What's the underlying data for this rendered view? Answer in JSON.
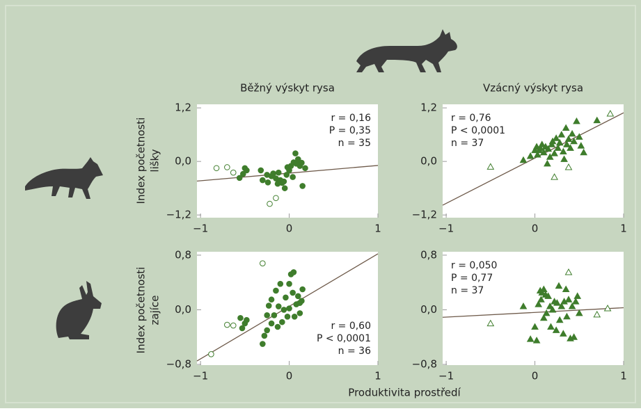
{
  "column_titles": [
    "Běžný výskyt rysa",
    "Vzácný výskyt rysa"
  ],
  "row_labels": [
    [
      "Index početnosti",
      "lišky"
    ],
    [
      "Index početnosti",
      "zajíce"
    ]
  ],
  "xlabel": "Produktivita prostředí",
  "chart_data": [
    {
      "type": "scatter",
      "xlim": [
        -1.04,
        1
      ],
      "ylim": [
        -1.26,
        1.28
      ],
      "xticks": [
        {
          "value": -1,
          "label": "−1"
        },
        0,
        1
      ],
      "yticks": [
        {
          "value": -1.2,
          "label": "−1,2"
        },
        {
          "value": 0,
          "label": "0,0"
        },
        {
          "value": 1.2,
          "label": "1,2"
        }
      ],
      "annotations": [
        "r = 0,16",
        "P = 0,35",
        "n = 35"
      ],
      "annotation_corner": "top-right",
      "trend_line": {
        "color": "#6e5a4a",
        "x": [
          -1.04,
          1
        ],
        "values": [
          -0.44,
          -0.09
        ]
      },
      "series": [
        {
          "color": "#3f7d2c",
          "marker": "circle",
          "filled": true,
          "x": [
            -0.52,
            -0.5,
            -0.48,
            -0.56,
            -0.32,
            -0.3,
            -0.24,
            -0.2,
            -0.18,
            -0.15,
            -0.13,
            -0.12,
            -0.1,
            -0.08,
            -0.06,
            -0.05,
            -0.03,
            -0.02,
            0.0,
            0.02,
            0.04,
            0.05,
            0.07,
            0.08,
            0.1,
            0.12,
            0.14,
            0.15,
            0.18,
            -0.25
          ],
          "values": [
            -0.28,
            -0.15,
            -0.2,
            -0.37,
            -0.2,
            -0.42,
            -0.47,
            -0.33,
            -0.27,
            -0.38,
            -0.5,
            -0.25,
            -0.42,
            -0.48,
            -0.45,
            -0.6,
            -0.3,
            -0.13,
            -0.2,
            -0.1,
            -0.35,
            -0.02,
            0.18,
            -0.05,
            0.05,
            -0.1,
            -0.03,
            -0.55,
            -0.15,
            -0.3
          ]
        },
        {
          "color": "#3f7d2c",
          "marker": "circle",
          "filled": false,
          "x": [
            -0.82,
            -0.7,
            -0.63,
            -0.22,
            -0.15
          ],
          "values": [
            -0.15,
            -0.13,
            -0.25,
            -0.95,
            -0.82
          ]
        }
      ]
    },
    {
      "type": "scatter",
      "xlim": [
        -1.04,
        1
      ],
      "ylim": [
        -1.26,
        1.28
      ],
      "xticks": [
        {
          "value": -1,
          "label": "−1"
        },
        0,
        1
      ],
      "yticks": [
        {
          "value": -1.2,
          "label": "−1,2"
        },
        {
          "value": 0,
          "label": "0,0"
        },
        {
          "value": 1.2,
          "label": "1,2"
        }
      ],
      "annotations": [
        "r = 0,76",
        "P < 0,0001",
        "n = 37"
      ],
      "annotation_corner": "top-left",
      "trend_line": {
        "color": "#6e5a4a",
        "x": [
          -1.04,
          1
        ],
        "values": [
          -0.98,
          1.09
        ]
      },
      "series": [
        {
          "color": "#3f7d2c",
          "marker": "triangle",
          "filled": true,
          "x": [
            -0.13,
            -0.05,
            0.0,
            0.02,
            0.03,
            0.05,
            0.06,
            0.08,
            0.1,
            0.12,
            0.14,
            0.15,
            0.17,
            0.19,
            0.2,
            0.22,
            0.24,
            0.26,
            0.28,
            0.3,
            0.32,
            0.33,
            0.35,
            0.36,
            0.38,
            0.4,
            0.42,
            0.44,
            0.47,
            0.5,
            0.52,
            0.55,
            0.7
          ],
          "values": [
            0.03,
            0.12,
            0.25,
            0.33,
            0.15,
            0.25,
            0.3,
            0.38,
            0.2,
            0.33,
            -0.05,
            0.28,
            0.1,
            0.38,
            0.45,
            0.18,
            0.52,
            0.3,
            0.42,
            0.6,
            0.22,
            0.05,
            0.75,
            0.38,
            0.5,
            0.3,
            0.62,
            0.45,
            0.9,
            0.55,
            0.35,
            0.2,
            0.92
          ]
        },
        {
          "color": "#3f7d2c",
          "marker": "triangle",
          "filled": false,
          "x": [
            -0.5,
            0.22,
            0.38,
            0.85
          ],
          "values": [
            -0.12,
            -0.35,
            -0.13,
            1.07
          ]
        }
      ]
    },
    {
      "type": "scatter",
      "xlim": [
        -1.04,
        1
      ],
      "ylim": [
        -0.81,
        0.85
      ],
      "xticks": [
        {
          "value": -1,
          "label": "−1"
        },
        0,
        1
      ],
      "yticks": [
        {
          "value": -0.8,
          "label": "−0,8"
        },
        {
          "value": 0,
          "label": "0,0"
        },
        {
          "value": 0.8,
          "label": "0,8"
        }
      ],
      "annotations": [
        "r = 0,60",
        "P < 0,0001",
        "n = 36"
      ],
      "annotation_corner": "bottom-right",
      "trend_line": {
        "color": "#6e5a4a",
        "x": [
          -1.04,
          1
        ],
        "values": [
          -0.75,
          0.82
        ]
      },
      "series": [
        {
          "color": "#3f7d2c",
          "marker": "circle",
          "filled": true,
          "x": [
            -0.55,
            -0.53,
            -0.5,
            -0.48,
            -0.3,
            -0.28,
            -0.25,
            -0.23,
            -0.2,
            -0.2,
            -0.17,
            -0.15,
            -0.13,
            -0.12,
            -0.1,
            -0.08,
            -0.06,
            -0.04,
            -0.02,
            0.0,
            0.0,
            0.02,
            0.04,
            0.05,
            0.06,
            0.08,
            0.1,
            0.12,
            0.14,
            0.15,
            0.12,
            -0.25
          ],
          "values": [
            -0.12,
            -0.27,
            -0.2,
            -0.15,
            -0.5,
            -0.38,
            -0.3,
            0.06,
            -0.2,
            0.15,
            -0.08,
            0.28,
            -0.25,
            0.05,
            0.38,
            -0.18,
            0.0,
            0.18,
            -0.1,
            0.38,
            0.02,
            0.52,
            0.25,
            0.55,
            -0.1,
            0.08,
            0.2,
            0.1,
            0.13,
            0.3,
            -0.05,
            -0.08
          ]
        },
        {
          "color": "#3f7d2c",
          "marker": "circle",
          "filled": false,
          "x": [
            -0.88,
            -0.7,
            -0.63,
            -0.3
          ],
          "values": [
            -0.65,
            -0.22,
            -0.23,
            0.68
          ]
        }
      ]
    },
    {
      "type": "scatter",
      "xlim": [
        -1.04,
        1
      ],
      "ylim": [
        -0.81,
        0.85
      ],
      "xticks": [
        {
          "value": -1,
          "label": "−1"
        },
        0,
        1
      ],
      "yticks": [
        {
          "value": -0.8,
          "label": "−0,8"
        },
        {
          "value": 0,
          "label": "0,0"
        },
        {
          "value": 0.8,
          "label": "0,8"
        }
      ],
      "annotations": [
        "r = 0,050",
        "P = 0,77",
        "n = 37"
      ],
      "annotation_corner": "top-left",
      "trend_line": {
        "color": "#6e5a4a",
        "x": [
          -1.04,
          1
        ],
        "values": [
          -0.11,
          0.03
        ]
      },
      "series": [
        {
          "color": "#3f7d2c",
          "marker": "triangle",
          "filled": true,
          "x": [
            -0.13,
            -0.05,
            0.0,
            0.02,
            0.04,
            0.06,
            0.07,
            0.08,
            0.1,
            0.12,
            0.13,
            0.15,
            0.17,
            0.18,
            0.2,
            0.22,
            0.24,
            0.25,
            0.27,
            0.28,
            0.3,
            0.32,
            0.33,
            0.35,
            0.36,
            0.38,
            0.4,
            0.42,
            0.44,
            0.46,
            0.48,
            0.5,
            0.1
          ],
          "values": [
            0.05,
            -0.43,
            -0.25,
            -0.45,
            0.08,
            0.28,
            0.15,
            0.25,
            0.3,
            0.22,
            -0.05,
            0.2,
            0.05,
            -0.25,
            0.0,
            0.12,
            -0.3,
            0.1,
            0.35,
            -0.15,
            0.05,
            -0.35,
            0.12,
            0.3,
            -0.1,
            0.15,
            -0.42,
            0.05,
            -0.4,
            0.12,
            0.2,
            -0.05,
            -0.12
          ]
        },
        {
          "color": "#3f7d2c",
          "marker": "triangle",
          "filled": false,
          "x": [
            -0.5,
            0.38,
            0.7,
            0.82
          ],
          "values": [
            -0.2,
            0.55,
            -0.07,
            0.02
          ]
        }
      ]
    }
  ]
}
